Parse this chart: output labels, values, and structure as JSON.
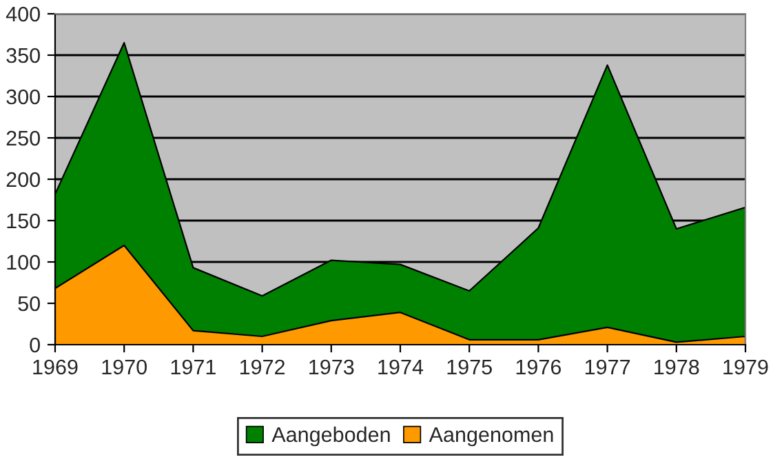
{
  "chart_data": {
    "type": "area",
    "x": [
      1969,
      1970,
      1971,
      1972,
      1973,
      1974,
      1975,
      1976,
      1977,
      1978,
      1979
    ],
    "series": [
      {
        "name": "Aangeboden",
        "color": "#008000",
        "values": [
          182,
          365,
          93,
          59,
          102,
          97,
          65,
          141,
          338,
          140,
          166
        ]
      },
      {
        "name": "Aangenomen",
        "color": "#ff9900",
        "values": [
          68,
          120,
          17,
          10,
          29,
          39,
          6,
          6,
          21,
          3,
          10
        ]
      }
    ],
    "xlim": [
      1969,
      1979
    ],
    "xticks": [
      1969,
      1970,
      1971,
      1972,
      1973,
      1974,
      1975,
      1976,
      1977,
      1978,
      1979
    ],
    "ylim": [
      0,
      400
    ],
    "yticks": [
      0,
      50,
      100,
      150,
      200,
      250,
      300,
      350,
      400
    ],
    "grid": "y",
    "legend": "bottom"
  }
}
